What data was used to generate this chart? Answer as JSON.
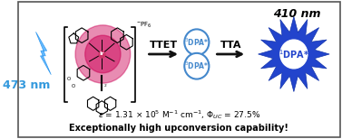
{
  "title_line1": "epsilon = 1.31 x 10^5 M^-1 cm^-1, Phi_UC = 27.5%",
  "title_line2": "Exceptionally high upconversion capability!",
  "wavelength_left": "473 nm",
  "wavelength_right": "410 nm",
  "label_ttet": "TTET",
  "label_tta": "TTA",
  "label_triplet1": "3DPA*",
  "label_triplet2": "3DPA*",
  "label_singlet": "1DPA*",
  "bg_color": "#ffffff",
  "border_color": "#555555",
  "lightning_color": "#66bbff",
  "lightning_edge": "#3399ee",
  "molecule_glow_color": "#cc0055",
  "circle_color": "#4488cc",
  "star_color": "#2244cc",
  "star_edge": "#1133aa",
  "arrow_color": "#111111",
  "text_color_nm_left": "#3399dd",
  "text_color_black": "#000000",
  "font_size_nm": 9,
  "font_size_labels": 8,
  "font_size_bottom": 6.5,
  "font_size_dpa": 5.5,
  "font_size_singlet": 7
}
